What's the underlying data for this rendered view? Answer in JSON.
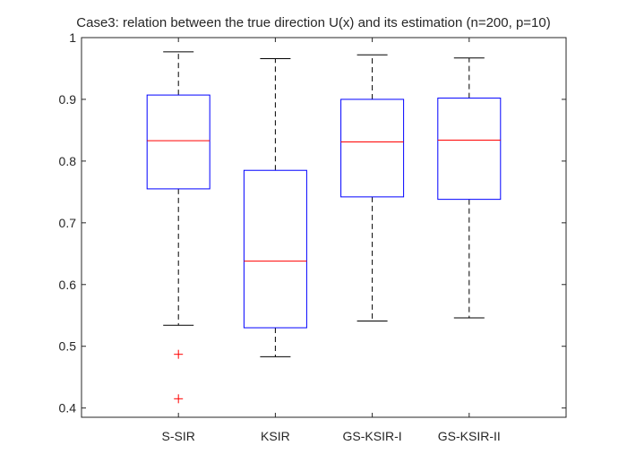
{
  "chart_data": {
    "type": "box",
    "title": "Case3: relation between the true direction U(x) and its estimation (n=200, p=10)",
    "xlabel": "",
    "ylabel": "",
    "ylim": [
      0.385,
      1.0
    ],
    "yticks": [
      0.4,
      0.5,
      0.6,
      0.7,
      0.8,
      0.9,
      1
    ],
    "ytick_labels": [
      "0.4",
      "0.5",
      "0.6",
      "0.7",
      "0.8",
      "0.9",
      "1"
    ],
    "categories": [
      "S-SIR",
      "KSIR",
      "GS-KSIR-I",
      "GS-KSIR-II"
    ],
    "boxes": [
      {
        "name": "S-SIR",
        "min": 0.534,
        "q1": 0.755,
        "median": 0.833,
        "q3": 0.907,
        "max": 0.977,
        "outliers": [
          0.487,
          0.415
        ]
      },
      {
        "name": "KSIR",
        "min": 0.483,
        "q1": 0.53,
        "median": 0.638,
        "q3": 0.785,
        "max": 0.966,
        "outliers": []
      },
      {
        "name": "GS-KSIR-I",
        "min": 0.541,
        "q1": 0.742,
        "median": 0.831,
        "q3": 0.9,
        "max": 0.972,
        "outliers": []
      },
      {
        "name": "GS-KSIR-II",
        "min": 0.546,
        "q1": 0.738,
        "median": 0.834,
        "q3": 0.902,
        "max": 0.967,
        "outliers": []
      }
    ],
    "colors": {
      "box": "#0000ff",
      "median": "#ff0000",
      "whisker": "#000000",
      "outlier": "#ff0000",
      "axis": "#262626"
    }
  }
}
